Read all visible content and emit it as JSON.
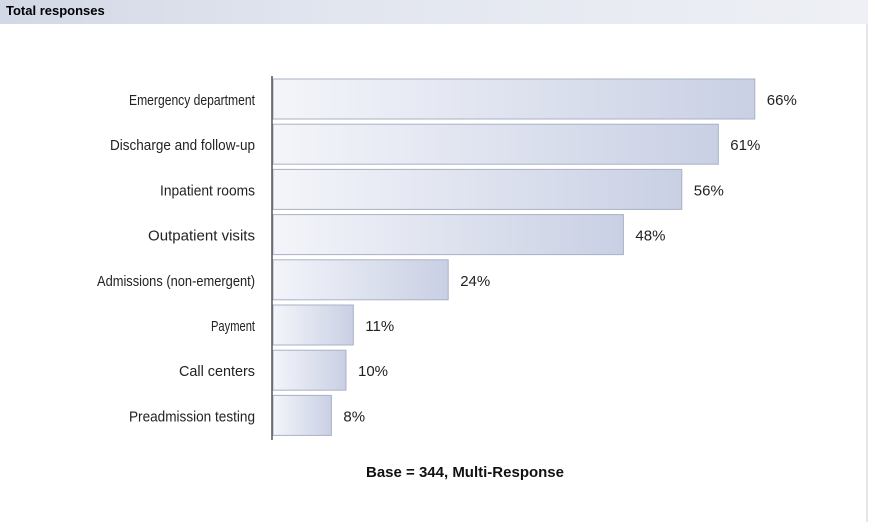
{
  "header": {
    "title": "Total responses"
  },
  "footnote": "Base = 344, Multi-Response",
  "colors": {
    "bar_light": "#f4f5fa",
    "bar_dark": "#c9d0e4",
    "bar_border": "#a9b1c6",
    "axis": "#555555",
    "header_band": "#dde1ec"
  },
  "chart_data": {
    "type": "bar",
    "orientation": "horizontal",
    "categories": [
      "Emergency department",
      "Discharge and follow-up",
      "Inpatient rooms",
      "Outpatient visits",
      "Admissions (non-emergent)",
      "Payment",
      "Call centers",
      "Preadmission testing"
    ],
    "values": [
      66,
      61,
      56,
      48,
      24,
      11,
      10,
      8
    ],
    "value_labels": [
      "66%",
      "61%",
      "56%",
      "48%",
      "24%",
      "11%",
      "10%",
      "8%"
    ],
    "unit": "%",
    "xlim": [
      0,
      100
    ],
    "grid": false,
    "legend": "none"
  }
}
